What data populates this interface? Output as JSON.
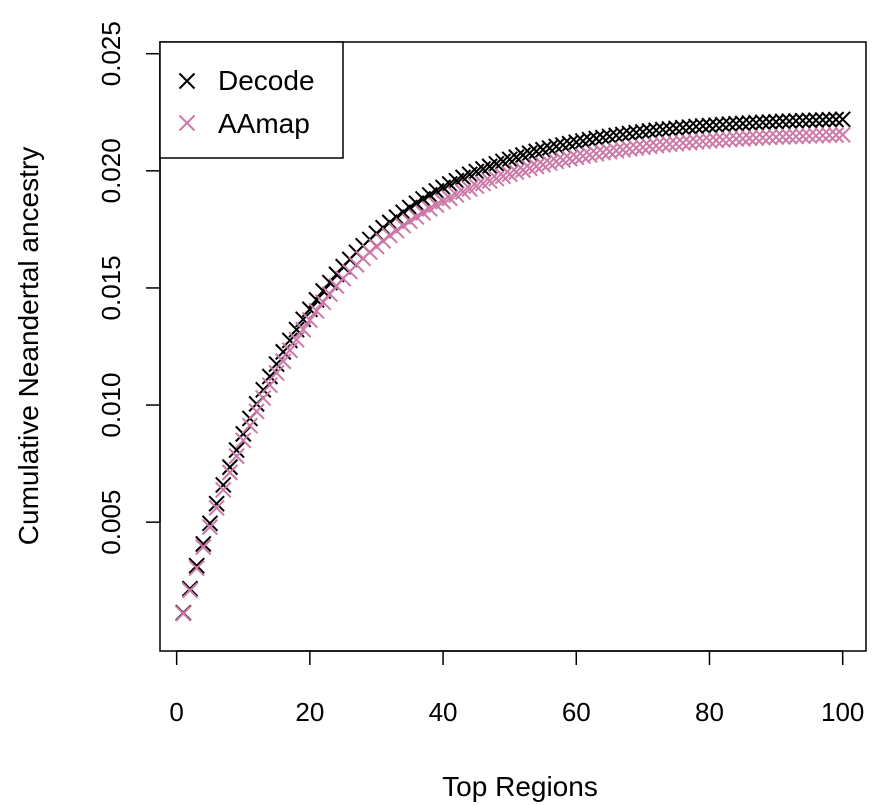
{
  "chart_data": {
    "type": "scatter",
    "title": "",
    "xlabel": "Top Regions",
    "ylabel": "Cumulative Neandertal ancestry",
    "xlim": [
      -2.5,
      103.5
    ],
    "ylim": [
      -0.0005,
      0.0255
    ],
    "xticks": [
      0,
      20,
      40,
      60,
      80,
      100
    ],
    "yticks": [
      0.005,
      0.01,
      0.015,
      0.02,
      0.025
    ],
    "xtick_labels": [
      "0",
      "20",
      "40",
      "60",
      "80",
      "100"
    ],
    "ytick_labels": [
      "0.005",
      "0.010",
      "0.015",
      "0.020",
      "0.025"
    ],
    "marker": "x",
    "legend_position": "top-left",
    "grid": false,
    "x": [
      1,
      2,
      3,
      4,
      5,
      6,
      7,
      8,
      9,
      10,
      11,
      12,
      13,
      14,
      15,
      16,
      17,
      18,
      19,
      20,
      21,
      22,
      23,
      24,
      25,
      26,
      27,
      28,
      29,
      30,
      31,
      32,
      33,
      34,
      35,
      36,
      37,
      38,
      39,
      40,
      41,
      42,
      43,
      44,
      45,
      46,
      47,
      48,
      49,
      50,
      51,
      52,
      53,
      54,
      55,
      56,
      57,
      58,
      59,
      60,
      61,
      62,
      63,
      64,
      65,
      66,
      67,
      68,
      69,
      70,
      71,
      72,
      73,
      74,
      75,
      76,
      77,
      78,
      79,
      80,
      81,
      82,
      83,
      84,
      85,
      86,
      87,
      88,
      89,
      90,
      91,
      92,
      93,
      94,
      95,
      96,
      97,
      98,
      99,
      100
    ],
    "series": [
      {
        "name": "Decode",
        "color": "#000000",
        "values": [
          0.00113,
          0.00216,
          0.00314,
          0.00407,
          0.00495,
          0.00579,
          0.00659,
          0.00735,
          0.00808,
          0.00877,
          0.00943,
          0.01005,
          0.01065,
          0.01122,
          0.01175,
          0.01227,
          0.01276,
          0.01322,
          0.01366,
          0.01409,
          0.01449,
          0.01487,
          0.01523,
          0.01558,
          0.01591,
          0.01622,
          0.01652,
          0.0168,
          0.01707,
          0.01733,
          0.01757,
          0.0178,
          0.01802,
          0.01823,
          0.01843,
          0.01862,
          0.0188,
          0.01897,
          0.01914,
          0.01929,
          0.01944,
          0.01958,
          0.01972,
          0.01985,
          0.01997,
          0.02008,
          0.02019,
          0.0203,
          0.0204,
          0.02049,
          0.02058,
          0.02067,
          0.02075,
          0.02083,
          0.0209,
          0.02097,
          0.02104,
          0.0211,
          0.02116,
          0.02122,
          0.02127,
          0.02133,
          0.02138,
          0.02142,
          0.02147,
          0.02151,
          0.02155,
          0.02159,
          0.02163,
          0.02166,
          0.0217,
          0.02173,
          0.02176,
          0.02179,
          0.02181,
          0.02184,
          0.02186,
          0.02189,
          0.02191,
          0.02193,
          0.02195,
          0.02197,
          0.02199,
          0.02201,
          0.02202,
          0.02204,
          0.02205,
          0.02207,
          0.02208,
          0.02209,
          0.02211,
          0.02212,
          0.02213,
          0.02214,
          0.02215,
          0.02216,
          0.02217,
          0.02218,
          0.02219,
          0.0222
        ]
      },
      {
        "name": "AAmap",
        "color": "#cc79a7",
        "values": [
          0.0011,
          0.00209,
          0.00304,
          0.00394,
          0.00479,
          0.00561,
          0.00638,
          0.00712,
          0.00782,
          0.00849,
          0.00912,
          0.00973,
          0.0103,
          0.01085,
          0.01137,
          0.01187,
          0.01234,
          0.01279,
          0.01322,
          0.01363,
          0.01402,
          0.01439,
          0.01474,
          0.01508,
          0.0154,
          0.0157,
          0.01599,
          0.01626,
          0.01653,
          0.01677,
          0.01701,
          0.01724,
          0.01745,
          0.01766,
          0.01785,
          0.01803,
          0.01821,
          0.01838,
          0.01854,
          0.01869,
          0.01883,
          0.01897,
          0.0191,
          0.01923,
          0.01935,
          0.01946,
          0.01957,
          0.01967,
          0.01977,
          0.01986,
          0.01995,
          0.02003,
          0.02011,
          0.02019,
          0.02026,
          0.02033,
          0.0204,
          0.02046,
          0.02052,
          0.02058,
          0.02063,
          0.02068,
          0.02073,
          0.02078,
          0.02082,
          0.02086,
          0.0209,
          0.02094,
          0.02098,
          0.02101,
          0.02105,
          0.02108,
          0.02111,
          0.02114,
          0.02116,
          0.02119,
          0.02121,
          0.02124,
          0.02126,
          0.02128,
          0.0213,
          0.02132,
          0.02134,
          0.02136,
          0.02137,
          0.02139,
          0.0214,
          0.02142,
          0.02143,
          0.02144,
          0.02145,
          0.02146,
          0.02147,
          0.02148,
          0.02149,
          0.0215,
          0.02151,
          0.02152,
          0.02153,
          0.02154
        ]
      }
    ]
  }
}
